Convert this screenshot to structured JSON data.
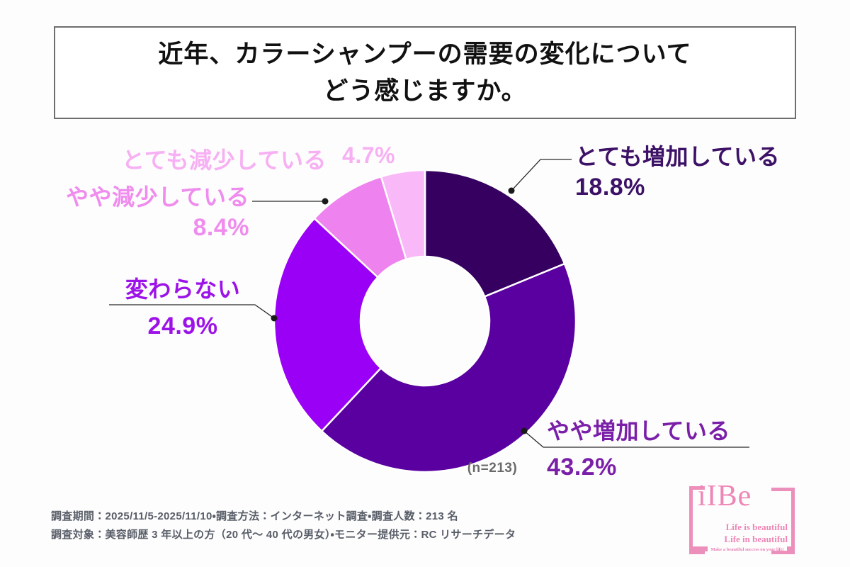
{
  "title": {
    "line1": "近年、カラーシャンプーの需要の変化について",
    "line2": "どう感じますか。"
  },
  "chart_data": {
    "type": "pie",
    "subtype": "donut",
    "categories": [
      "とても増加している",
      "やや増加している",
      "変わらない",
      "やや減少している",
      "とても減少している"
    ],
    "values": [
      18.8,
      43.2,
      24.9,
      8.4,
      4.7
    ],
    "colors": [
      "#360060",
      "#5a00a0",
      "#9a00f5",
      "#ee82ee",
      "#f9b8f7"
    ],
    "start_angle": "12-oclock",
    "direction": "clockwise",
    "note": "(n=213)",
    "legend_position": "callout-labels-around-donut"
  },
  "callouts": {
    "increase_strong": {
      "label": "とても増加している",
      "pct": "18.8%"
    },
    "increase_slight": {
      "label": "やや増加している",
      "pct": "43.2%"
    },
    "unchanged": {
      "label": "変わらない",
      "pct": "24.9%"
    },
    "decrease_slight": {
      "label": "やや減少している",
      "pct": "8.4%"
    },
    "decrease_strong": {
      "label": "とても減少している",
      "pct": "4.7%"
    }
  },
  "note": "(n=213)",
  "footer": {
    "line1": "調査期間：2025/11/5-2025/11/10・調査方法：インターネット調査・調査人数：213 名",
    "line2": "調査対象：美容師歴 3 年以上の方（20 代〜 40 代の男女）・モニター提供元：RC リサーチデータ"
  },
  "logo": {
    "wordmark": "iIBe",
    "tagline1": "Life is beautiful",
    "tagline2": "Life in beautiful",
    "tagline3": "Make a beautiful success on your life!",
    "brand_color": "#ec8fbb"
  }
}
